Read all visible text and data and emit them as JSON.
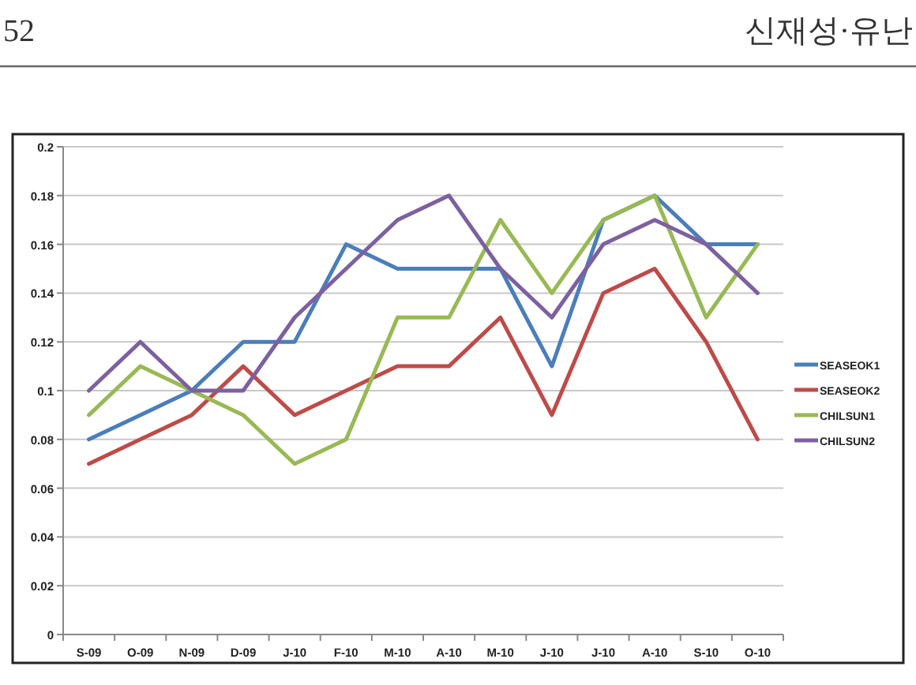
{
  "chart_data": {
    "type": "line",
    "annotations": [
      "52",
      "신재성·유난"
    ],
    "categories": [
      "S-09",
      "O-09",
      "N-09",
      "D-09",
      "J-10",
      "F-10",
      "M-10",
      "A-10",
      "M-10",
      "J-10",
      "J-10",
      "A-10",
      "S-10",
      "O-10"
    ],
    "series": [
      {
        "name": "SEASEOK1",
        "color": "#4a7ebb",
        "values": [
          0.08,
          0.09,
          0.1,
          0.12,
          0.12,
          0.16,
          0.15,
          0.15,
          0.15,
          0.11,
          0.17,
          0.18,
          0.16,
          0.16
        ]
      },
      {
        "name": "SEASEOK2",
        "color": "#be4b48",
        "values": [
          0.07,
          0.08,
          0.09,
          0.11,
          0.09,
          0.1,
          0.11,
          0.11,
          0.13,
          0.09,
          0.14,
          0.15,
          0.12,
          0.08
        ]
      },
      {
        "name": "CHILSUN1",
        "color": "#98b954",
        "values": [
          0.09,
          0.11,
          0.1,
          0.09,
          0.07,
          0.08,
          0.13,
          0.13,
          0.17,
          0.14,
          0.17,
          0.18,
          0.13,
          0.16
        ]
      },
      {
        "name": "CHILSUN2",
        "color": "#7d60a0",
        "values": [
          0.1,
          0.12,
          0.1,
          0.1,
          0.13,
          0.15,
          0.17,
          0.18,
          0.15,
          0.13,
          0.16,
          0.17,
          0.16,
          0.14
        ]
      }
    ],
    "ylim": [
      0,
      0.2
    ],
    "yticks": [
      0,
      0.02,
      0.04,
      0.06,
      0.08,
      0.1,
      0.12,
      0.14,
      0.16,
      0.18,
      0.2
    ],
    "grid": "y",
    "legend": "right",
    "marker": "none",
    "line_style": "solid"
  }
}
